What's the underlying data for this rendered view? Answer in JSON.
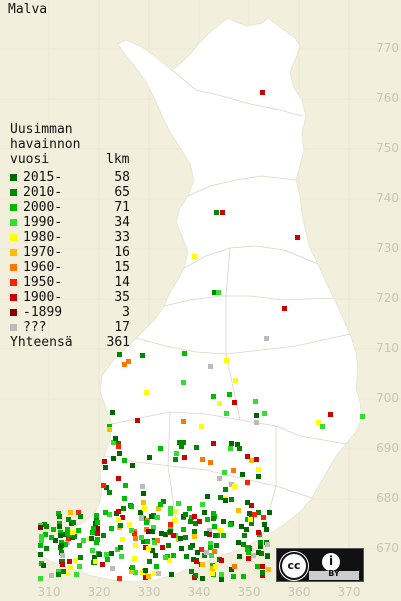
{
  "title": "Malva",
  "legend": {
    "heading": [
      "Uusimman",
      "havainnon",
      "vuosi"
    ],
    "count_heading": "lkm",
    "rows": [
      {
        "label": "2015-",
        "count": "58",
        "color": "#006600"
      },
      {
        "label": "2010-",
        "count": "65",
        "color": "#008800"
      },
      {
        "label": "2000-",
        "count": "71",
        "color": "#00bb00"
      },
      {
        "label": "1990-",
        "count": "34",
        "color": "#33dd33"
      },
      {
        "label": "1980-",
        "count": "33",
        "color": "#ffff00"
      },
      {
        "label": "1970-",
        "count": "16",
        "color": "#ffbb00"
      },
      {
        "label": "1960-",
        "count": "15",
        "color": "#ff7700"
      },
      {
        "label": "1950-",
        "count": "14",
        "color": "#ff2200"
      },
      {
        "label": "1900-",
        "count": "35",
        "color": "#cc0000"
      },
      {
        "label": "-1899",
        "count": "3",
        "color": "#880000"
      },
      {
        "label": " ???",
        "count": "17",
        "color": "#bbbbbb"
      }
    ],
    "total_label": "Yhteensä",
    "total_count": "361"
  },
  "y_ticks": [
    "770",
    "760",
    "750",
    "740",
    "730",
    "720",
    "710",
    "700",
    "690",
    "680",
    "670"
  ],
  "x_ticks": [
    "310",
    "320",
    "330",
    "340",
    "350",
    "360",
    "370"
  ],
  "license": {
    "cc": "cc",
    "attribution": "i",
    "by": "BY"
  },
  "colors": {
    "background": "#f2f0dc",
    "land": "#ffffff",
    "grid": "#ddddcc",
    "tick": "#c8c6b4"
  }
}
